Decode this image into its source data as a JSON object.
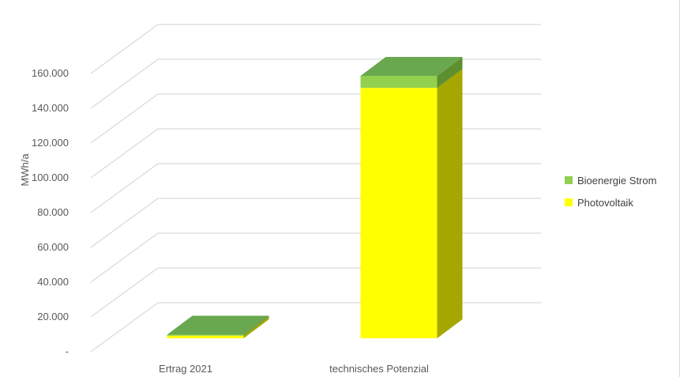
{
  "chart_data": {
    "type": "bar",
    "stacked": true,
    "three_d": true,
    "title": "",
    "xlabel": "",
    "ylabel": "MWh/a",
    "categories": [
      "Ertrag 2021",
      "technisches Potenzial"
    ],
    "series": [
      {
        "name": "Photovoltaik",
        "values": [
          1500,
          146000
        ],
        "color": "#ffff00",
        "side_color": "#a6a600"
      },
      {
        "name": "Bioenergie Strom",
        "values": [
          600,
          7000
        ],
        "color": "#92d050",
        "top_color": "#6aa84f",
        "side_color": "#5e8f2e"
      }
    ],
    "ylim": [
      0,
      160000
    ],
    "yticks": [
      0,
      20000,
      40000,
      60000,
      80000,
      100000,
      120000,
      140000,
      160000
    ],
    "ytick_labels": [
      "-",
      "20.000",
      "40.000",
      "60.000",
      "80.000",
      "100.000",
      "120.000",
      "140.000",
      "160.000"
    ],
    "grid": true,
    "legend_position": "right"
  }
}
